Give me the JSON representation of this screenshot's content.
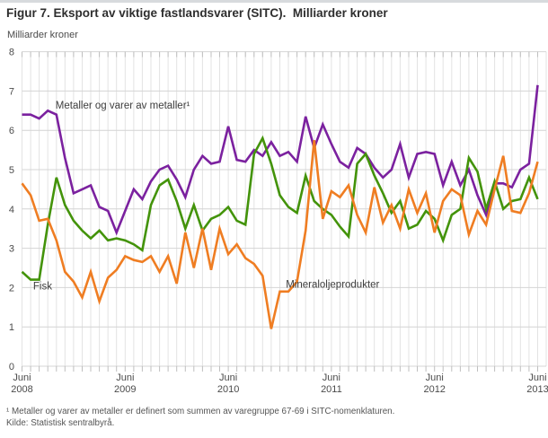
{
  "window": {
    "title": "Figur 7. Eksport av viktige fastlandsvarer (SITC).  Milliarder kroner"
  },
  "y_axis": {
    "unit_label": "Milliarder kroner",
    "ticks": [
      0,
      1,
      2,
      3,
      4,
      5,
      6,
      7,
      8
    ]
  },
  "x_axis": {
    "tick_labels": [
      {
        "line1": "Juni",
        "line2": "2008"
      },
      {
        "line1": "Juni",
        "line2": "2009"
      },
      {
        "line1": "Juni",
        "line2": "2010"
      },
      {
        "line1": "Juni",
        "line2": "2011"
      },
      {
        "line1": "Juni",
        "line2": "2012"
      },
      {
        "line1": "Juni",
        "line2": "2013"
      }
    ]
  },
  "footnote": "¹ Metaller og varer av metaller er definert som summen av varegruppe 67-69 i SITC-nomenklaturen.",
  "source": "Kilde: Statistisk sentralbyrå.",
  "chart_data": {
    "type": "line",
    "title": "Figur 7. Eksport av viktige fastlandsvarer (SITC).  Milliarder kroner",
    "ylabel": "Milliarder kroner",
    "ylim": [
      0,
      8
    ],
    "grid": true,
    "x_first_month": "2008-06",
    "x_last_month": "2013-06",
    "n_points": 61,
    "x_tick_positions": [
      0,
      12,
      24,
      36,
      48,
      60
    ],
    "legend_position": "inline-annotations",
    "series": [
      {
        "name": "Metaller og varer av metaller",
        "color": "#7b219f",
        "values": [
          6.4,
          6.4,
          6.3,
          6.5,
          6.4,
          5.3,
          4.4,
          4.5,
          4.6,
          4.05,
          3.95,
          3.4,
          3.95,
          4.5,
          4.25,
          4.7,
          5.0,
          5.1,
          4.75,
          4.3,
          5.0,
          5.35,
          5.15,
          5.2,
          6.1,
          5.25,
          5.2,
          5.5,
          5.35,
          5.7,
          5.35,
          5.45,
          5.2,
          6.35,
          5.55,
          6.15,
          5.65,
          5.2,
          5.05,
          5.55,
          5.4,
          5.05,
          4.8,
          5.0,
          5.65,
          4.8,
          5.4,
          5.45,
          5.4,
          4.6,
          5.2,
          4.6,
          5.0,
          4.35,
          3.85,
          4.65,
          4.65,
          4.55,
          5.0,
          5.15,
          7.15
        ]
      },
      {
        "name": "Fisk",
        "color": "#43930a",
        "values": [
          2.4,
          2.2,
          2.2,
          3.6,
          4.8,
          4.1,
          3.7,
          3.45,
          3.25,
          3.45,
          3.2,
          3.25,
          3.2,
          3.1,
          2.95,
          4.1,
          4.6,
          4.75,
          4.2,
          3.5,
          4.1,
          3.45,
          3.75,
          3.85,
          4.05,
          3.7,
          3.6,
          5.4,
          5.8,
          5.15,
          4.35,
          4.05,
          3.9,
          4.85,
          4.2,
          4.0,
          3.85,
          3.55,
          3.3,
          5.15,
          5.4,
          4.85,
          4.4,
          3.9,
          4.2,
          3.5,
          3.6,
          3.95,
          3.75,
          3.2,
          3.85,
          4.0,
          5.3,
          4.95,
          4.0,
          4.7,
          4.0,
          4.2,
          4.25,
          4.8,
          4.25
        ]
      },
      {
        "name": "Mineraloljeprodukter",
        "color": "#ef7d22",
        "values": [
          4.65,
          4.35,
          3.7,
          3.75,
          3.2,
          2.4,
          2.15,
          1.75,
          2.4,
          1.65,
          2.25,
          2.45,
          2.8,
          2.7,
          2.65,
          2.8,
          2.4,
          2.8,
          2.1,
          3.4,
          2.5,
          3.5,
          2.45,
          3.5,
          2.85,
          3.1,
          2.75,
          2.6,
          2.3,
          0.95,
          1.9,
          1.9,
          2.15,
          3.45,
          5.75,
          3.75,
          4.45,
          4.3,
          4.6,
          3.85,
          3.4,
          4.55,
          3.65,
          4.1,
          3.5,
          4.5,
          3.9,
          4.4,
          3.4,
          4.2,
          4.5,
          4.35,
          3.35,
          3.95,
          3.6,
          4.5,
          5.35,
          3.95,
          3.9,
          4.4,
          5.2
        ]
      }
    ],
    "annotations": [
      {
        "text": "Metaller og varer av metaller¹",
        "month": 3.9,
        "value": 6.55,
        "series": "Metaller og varer av metaller"
      },
      {
        "text": "Fisk",
        "month": 1.3,
        "value": 1.95,
        "series": "Fisk"
      },
      {
        "text": "Mineraloljeprodukter",
        "month": 30.7,
        "value": 2.0,
        "series": "Mineraloljeprodukter"
      }
    ],
    "colors": {
      "grid_horizontal": "#d4d4d4",
      "grid_vertical": "#e3e3e3",
      "tick": "#bfbfbf",
      "axis_text": "#4b4b4b",
      "annotation_text": "#3c3c3c"
    }
  }
}
